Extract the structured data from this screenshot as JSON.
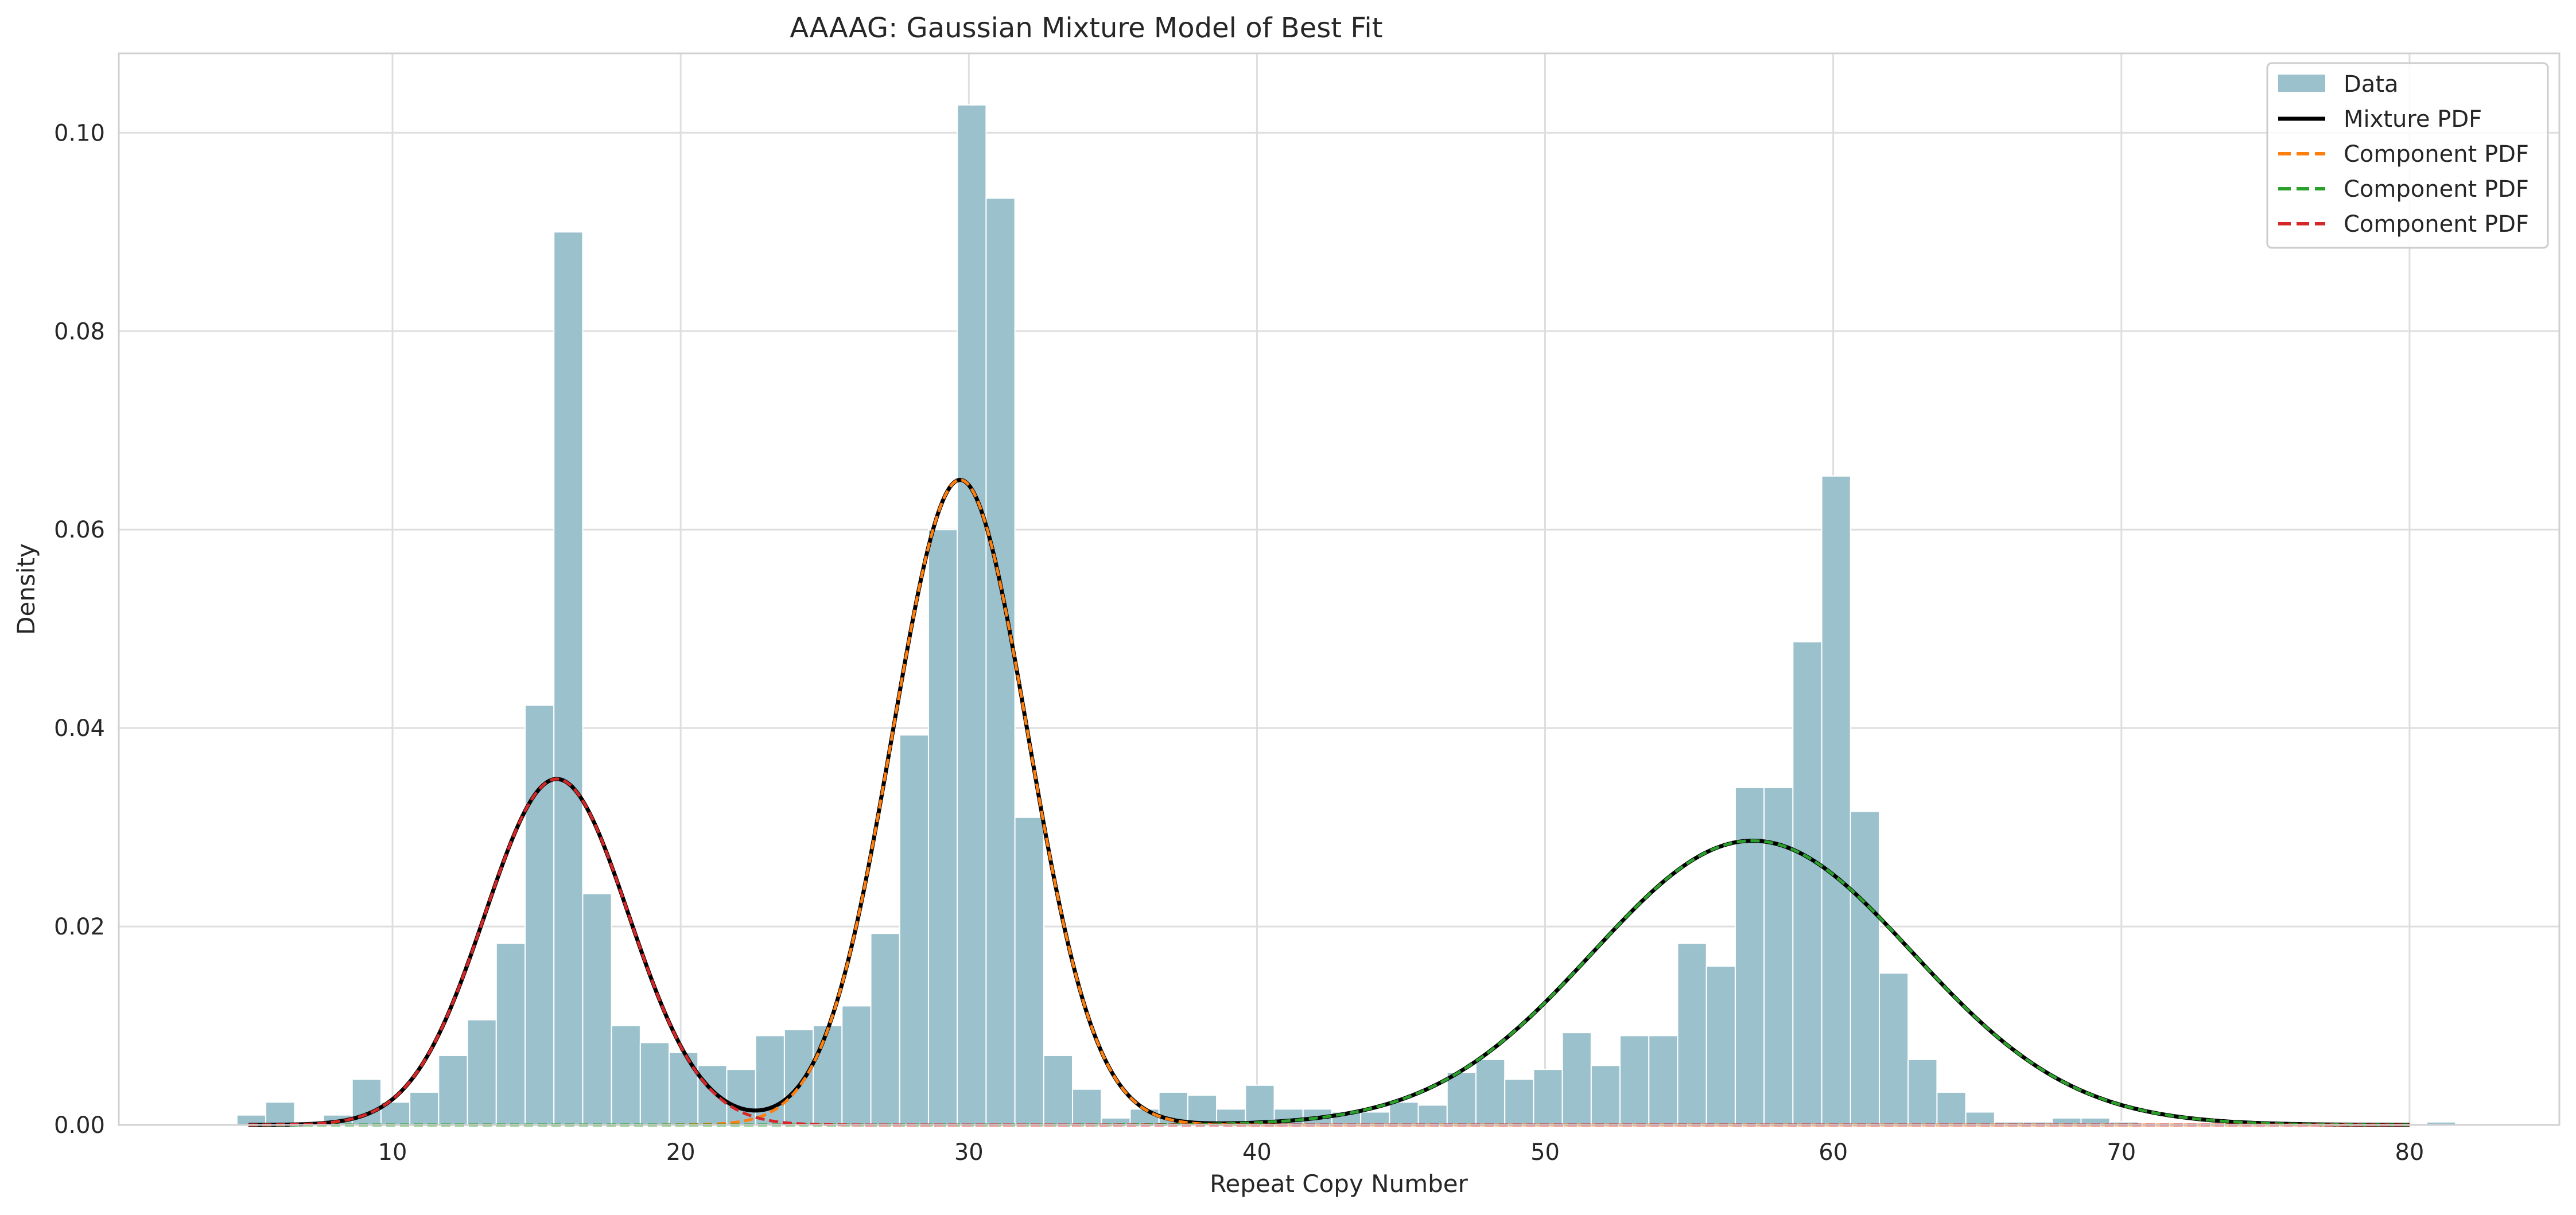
{
  "chart_data": {
    "type": "bar",
    "title": "AAAAG: Gaussian Mixture Model of Best Fit",
    "xlabel": "Repeat Copy Number",
    "ylabel": "Density",
    "xlim": [
      0.5,
      85.2
    ],
    "ylim": [
      0,
      0.108
    ],
    "xticks": [
      10,
      20,
      30,
      40,
      50,
      60,
      70,
      80
    ],
    "yticks": [
      0.0,
      0.02,
      0.04,
      0.06,
      0.08,
      0.1
    ],
    "xtick_labels": [
      "10",
      "20",
      "30",
      "40",
      "50",
      "60",
      "70",
      "80"
    ],
    "ytick_labels": [
      "0.00",
      "0.02",
      "0.04",
      "0.06",
      "0.08",
      "0.10"
    ],
    "grid": true,
    "legend_position": "top-right",
    "histogram": {
      "name": "Data",
      "color": "#9bc1cc",
      "bins": [
        [
          4.6,
          5.6,
          0.001
        ],
        [
          5.6,
          6.6,
          0.0023
        ],
        [
          6.6,
          7.6,
          0.0003
        ],
        [
          7.6,
          8.6,
          0.001
        ],
        [
          8.6,
          9.6,
          0.0046
        ],
        [
          9.6,
          10.6,
          0.0023
        ],
        [
          10.6,
          11.6,
          0.0033
        ],
        [
          11.6,
          12.6,
          0.007
        ],
        [
          12.6,
          13.6,
          0.0106
        ],
        [
          13.6,
          14.6,
          0.0183
        ],
        [
          14.6,
          15.6,
          0.0423
        ],
        [
          15.6,
          16.6,
          0.09
        ],
        [
          16.6,
          17.6,
          0.0233
        ],
        [
          17.6,
          18.6,
          0.01
        ],
        [
          18.6,
          19.6,
          0.0083
        ],
        [
          19.6,
          20.6,
          0.0073
        ],
        [
          20.6,
          21.6,
          0.006
        ],
        [
          21.6,
          22.6,
          0.0056
        ],
        [
          22.6,
          23.6,
          0.009
        ],
        [
          23.6,
          24.6,
          0.0096
        ],
        [
          24.6,
          25.6,
          0.01
        ],
        [
          25.6,
          26.6,
          0.012
        ],
        [
          26.6,
          27.6,
          0.0193
        ],
        [
          27.6,
          28.6,
          0.0393
        ],
        [
          28.6,
          29.6,
          0.06
        ],
        [
          29.6,
          30.6,
          0.1028
        ],
        [
          30.6,
          31.6,
          0.0934
        ],
        [
          31.6,
          32.6,
          0.031
        ],
        [
          32.6,
          33.6,
          0.007
        ],
        [
          33.6,
          34.6,
          0.0036
        ],
        [
          34.6,
          35.6,
          0.0007
        ],
        [
          35.6,
          36.6,
          0.0016
        ],
        [
          36.6,
          37.6,
          0.0033
        ],
        [
          37.6,
          38.6,
          0.003
        ],
        [
          38.6,
          39.6,
          0.0016
        ],
        [
          39.6,
          40.6,
          0.004
        ],
        [
          40.6,
          41.6,
          0.0016
        ],
        [
          41.6,
          42.6,
          0.0016
        ],
        [
          42.6,
          43.6,
          0.0013
        ],
        [
          43.6,
          44.6,
          0.0013
        ],
        [
          44.6,
          45.6,
          0.0023
        ],
        [
          45.6,
          46.6,
          0.002
        ],
        [
          46.6,
          47.6,
          0.0053
        ],
        [
          47.6,
          48.6,
          0.0066
        ],
        [
          48.6,
          49.6,
          0.0046
        ],
        [
          49.6,
          50.6,
          0.0056
        ],
        [
          50.6,
          51.6,
          0.0093
        ],
        [
          51.6,
          52.6,
          0.006
        ],
        [
          52.6,
          53.6,
          0.009
        ],
        [
          53.6,
          54.6,
          0.009
        ],
        [
          54.6,
          55.6,
          0.0183
        ],
        [
          55.6,
          56.6,
          0.016
        ],
        [
          56.6,
          57.6,
          0.034
        ],
        [
          57.6,
          58.6,
          0.034
        ],
        [
          58.6,
          59.6,
          0.0487
        ],
        [
          59.6,
          60.6,
          0.0654
        ],
        [
          60.6,
          61.6,
          0.0316
        ],
        [
          61.6,
          62.6,
          0.0153
        ],
        [
          62.6,
          63.6,
          0.0066
        ],
        [
          63.6,
          64.6,
          0.0033
        ],
        [
          64.6,
          65.6,
          0.0013
        ],
        [
          65.6,
          66.6,
          0.0003
        ],
        [
          66.6,
          67.6,
          0.0003
        ],
        [
          67.6,
          68.6,
          0.0007
        ],
        [
          68.6,
          69.6,
          0.0007
        ],
        [
          69.6,
          70.6,
          0.0003
        ],
        [
          80.6,
          81.6,
          0.0003
        ]
      ]
    },
    "series": [
      {
        "name": "Mixture PDF",
        "color": "#000000",
        "style": "solid",
        "x_range": [
          5,
          80
        ]
      },
      {
        "name": "Component PDF",
        "color": "#ff7f0e",
        "style": "dashed",
        "weight": 0.383,
        "mean": 29.7,
        "sd": 2.35,
        "x_range": [
          5,
          80
        ]
      },
      {
        "name": "Component PDF",
        "color": "#2ca02c",
        "style": "dashed",
        "weight": 0.3985,
        "mean": 57.2,
        "sd": 5.55,
        "x_range": [
          5,
          80
        ]
      },
      {
        "name": "Component PDF",
        "color": "#d62728",
        "style": "dashed",
        "weight": 0.2185,
        "mean": 15.7,
        "sd": 2.5,
        "x_range": [
          5,
          80
        ]
      }
    ]
  }
}
